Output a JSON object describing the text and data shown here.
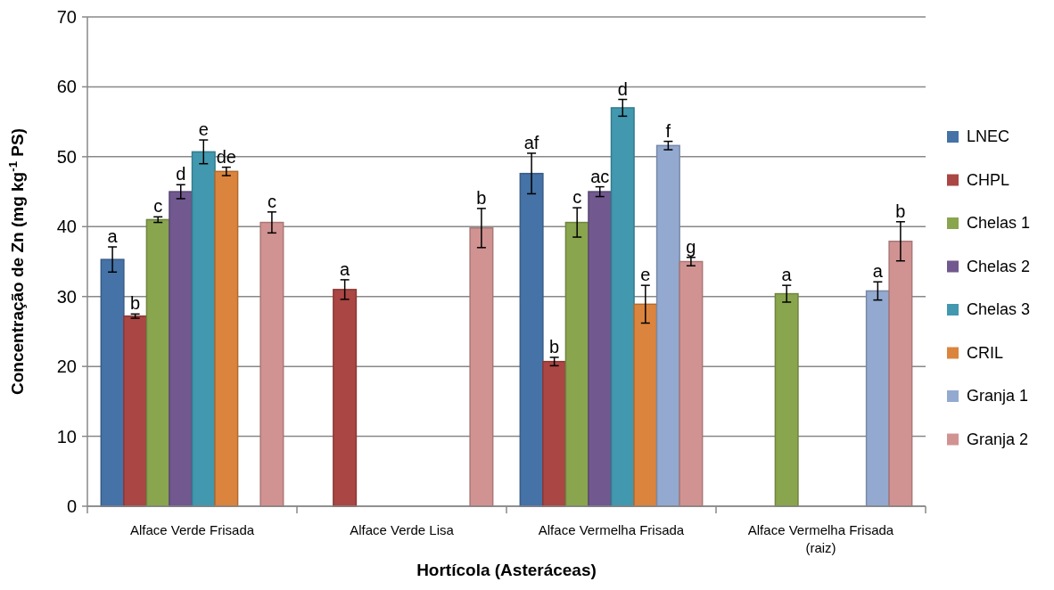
{
  "chart_data": {
    "type": "bar",
    "xlabel": "Hortícola (Asteráceas)",
    "ylabel": "Concentração de Zn (mg kg$^{-1}$ PS)",
    "categories": [
      "Alface Verde Frisada",
      "Alface Verde Lisa",
      "Alface Vermelha Frisada",
      "Alface Vermelha Frisada\n(raiz)"
    ],
    "ylim": [
      0,
      70
    ],
    "yticks": [
      0,
      10,
      20,
      30,
      40,
      50,
      60,
      70
    ],
    "grid": "y",
    "legend": "right",
    "series": [
      {
        "name": "LNEC",
        "color": "#4572a7",
        "values": [
          35.3,
          null,
          47.6,
          null
        ],
        "errors": [
          1.8,
          null,
          2.9,
          null
        ],
        "value_labels": [
          "a",
          null,
          "af",
          null
        ]
      },
      {
        "name": "CHPL",
        "color": "#aa4643",
        "values": [
          27.2,
          31,
          20.7,
          null
        ],
        "errors": [
          0.3,
          1.4,
          0.6,
          null
        ],
        "value_labels": [
          "b",
          "a",
          "b",
          null
        ]
      },
      {
        "name": "Chelas 1",
        "color": "#89a54e",
        "values": [
          41,
          null,
          40.6,
          30.4
        ],
        "errors": [
          0.4,
          null,
          2.1,
          1.2
        ],
        "value_labels": [
          "c",
          null,
          "c",
          "a"
        ]
      },
      {
        "name": "Chelas 2",
        "color": "#71588f",
        "values": [
          45,
          null,
          45,
          null
        ],
        "errors": [
          1,
          null,
          0.7,
          null
        ],
        "value_labels": [
          "d",
          null,
          "ac",
          null
        ]
      },
      {
        "name": "Chelas 3",
        "color": "#4198af",
        "values": [
          50.7,
          null,
          57,
          null
        ],
        "errors": [
          1.7,
          null,
          1.2,
          null
        ],
        "value_labels": [
          "e",
          null,
          "d",
          null
        ]
      },
      {
        "name": "CRIL",
        "color": "#db843d",
        "values": [
          47.9,
          null,
          28.9,
          null
        ],
        "errors": [
          0.6,
          null,
          2.7,
          null
        ],
        "value_labels": [
          "de",
          null,
          "e",
          null
        ]
      },
      {
        "name": "Granja 1",
        "color": "#93a9cf",
        "values": [
          null,
          null,
          51.6,
          30.8
        ],
        "errors": [
          null,
          null,
          0.6,
          1.3
        ],
        "value_labels": [
          null,
          null,
          "f",
          "a"
        ]
      },
      {
        "name": "Granja 2",
        "color": "#d19392",
        "values": [
          40.6,
          39.8,
          35,
          37.9
        ],
        "errors": [
          1.5,
          2.8,
          0.6,
          2.8
        ],
        "value_labels": [
          "c",
          "b",
          "g",
          "b"
        ]
      }
    ]
  }
}
